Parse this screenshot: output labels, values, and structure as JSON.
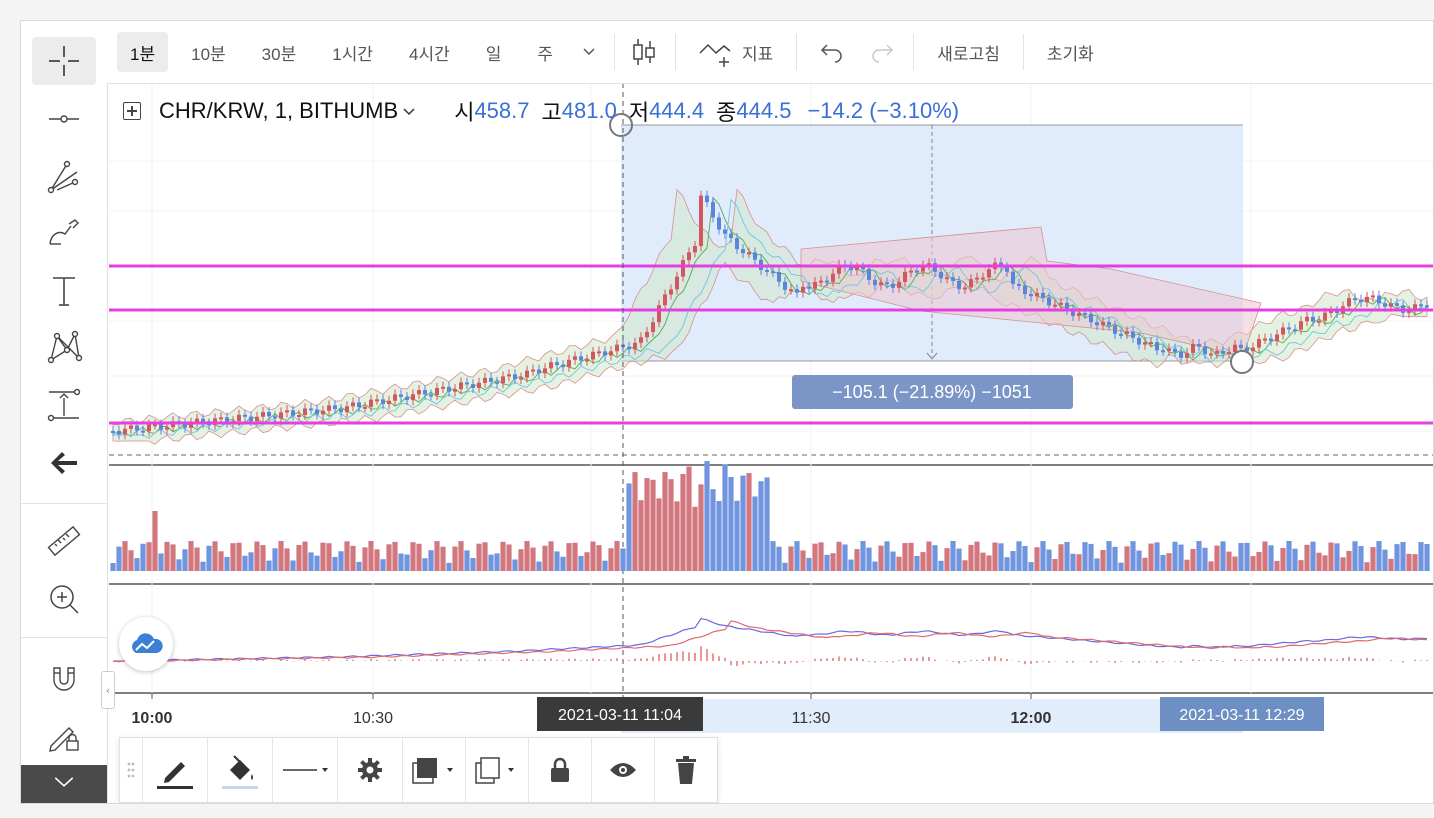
{
  "toolbar": {
    "intervals": [
      "1분",
      "10분",
      "30분",
      "1시간",
      "4시간",
      "일",
      "주"
    ],
    "active_interval": "1분",
    "indicators_label": "지표",
    "refresh_label": "새로고침",
    "reset_label": "초기화"
  },
  "legend": {
    "symbol": "CHR/KRW, 1, BITHUMB",
    "open_label": "시",
    "open": "458.7",
    "high_label": "고",
    "high": "481.0",
    "low_label": "저",
    "low": "444.4",
    "close_label": "종",
    "close": "444.5",
    "change": "−14.2 (−3.10%)"
  },
  "measure": {
    "label": "−105.1 (−21.89%) −1051",
    "start_time": "2021-03-11   11:04",
    "end_time": "2021-03-11   12:29"
  },
  "time_axis": [
    "10:00",
    "10:30",
    "11:30",
    "12:00"
  ],
  "colors": {
    "up": "#d2575f",
    "down": "#5b84dd",
    "hline": "#e63fe0",
    "measure_fill": "#dbe9fb",
    "label_bg": "#7b96c6"
  },
  "left_tools": [
    "crosshair-icon",
    "horizontal-line-icon",
    "pitchfork-icon",
    "brush-icon",
    "text-icon",
    "pattern-icon",
    "measure-tool-icon",
    "back-arrow-icon",
    "ruler-icon",
    "zoom-in-icon",
    "magnet-icon",
    "lock-drawing-icon",
    "chevron-down-icon"
  ]
}
